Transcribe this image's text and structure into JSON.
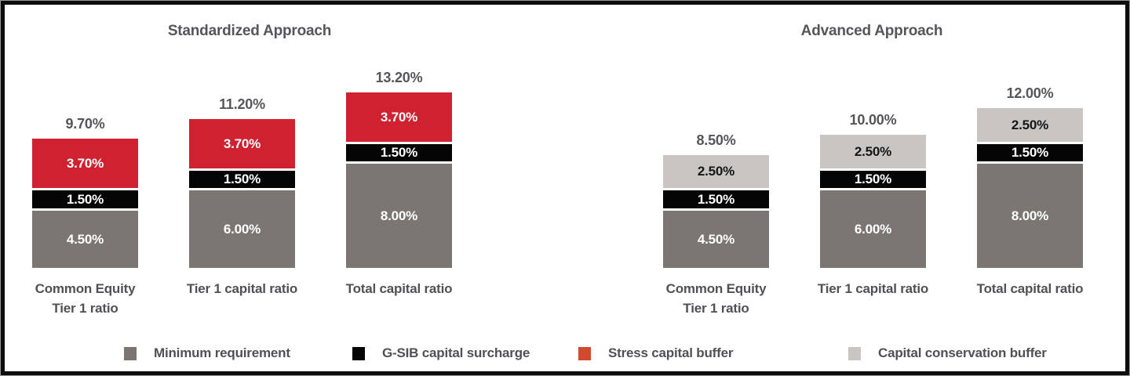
{
  "chart_data": [
    {
      "type": "stacked-bar",
      "title": "Standardized Approach",
      "categories": [
        "Common Equity\nTier 1 ratio",
        "Tier 1 capital ratio",
        "Total capital ratio"
      ],
      "series": [
        {
          "name": "Minimum requirement",
          "color": "#7c7672",
          "label_color": "#ffffff",
          "values": [
            4.5,
            6.0,
            8.0
          ],
          "labels": [
            "4.50%",
            "6.00%",
            "8.00%"
          ]
        },
        {
          "name": "G-SIB capital surcharge",
          "color": "#050505",
          "label_color": "#ffffff",
          "values": [
            1.5,
            1.5,
            1.5
          ],
          "labels": [
            "1.50%",
            "1.50%",
            "1.50%"
          ]
        },
        {
          "name": "Stress capital buffer",
          "color": "#cf2130",
          "label_color": "#ffffff",
          "values": [
            3.7,
            3.7,
            3.7
          ],
          "labels": [
            "3.70%",
            "3.70%",
            "3.70%"
          ]
        }
      ],
      "totals": [
        "9.70%",
        "11.20%",
        "13.20%"
      ],
      "ylim": [
        0,
        14
      ],
      "grid": false,
      "axes_visible": false
    },
    {
      "type": "stacked-bar",
      "title": "Advanced Approach",
      "categories": [
        "Common Equity\nTier 1 ratio",
        "Tier 1 capital ratio",
        "Total capital ratio"
      ],
      "series": [
        {
          "name": "Minimum requirement",
          "color": "#7c7672",
          "label_color": "#ffffff",
          "values": [
            4.5,
            6.0,
            8.0
          ],
          "labels": [
            "4.50%",
            "6.00%",
            "8.00%"
          ]
        },
        {
          "name": "G-SIB capital surcharge",
          "color": "#050505",
          "label_color": "#ffffff",
          "values": [
            1.5,
            1.5,
            1.5
          ],
          "labels": [
            "1.50%",
            "1.50%",
            "1.50%"
          ]
        },
        {
          "name": "Capital conservation buffer",
          "color": "#c9c5c2",
          "label_color": "#161616",
          "values": [
            2.5,
            2.5,
            2.5
          ],
          "labels": [
            "2.50%",
            "2.50%",
            "2.50%"
          ]
        }
      ],
      "totals": [
        "8.50%",
        "10.00%",
        "12.00%"
      ],
      "ylim": [
        0,
        14
      ],
      "grid": false,
      "axes_visible": false
    }
  ],
  "legend": {
    "position": "bottom",
    "items": [
      {
        "label": "Minimum requirement",
        "color": "#7c7672"
      },
      {
        "label": "G-SIB capital surcharge",
        "color": "#050505"
      },
      {
        "label": "Stress capital buffer",
        "color": "#d14a2b"
      },
      {
        "label": "Capital conservation buffer",
        "color": "#c9c5c2"
      }
    ]
  },
  "frame": {
    "outer_border_color": "#97989a",
    "inner_border_color": "#0d0d0d",
    "background": "#ffffff",
    "title_text_color": "#55565a",
    "label_text_color": "#505155"
  }
}
